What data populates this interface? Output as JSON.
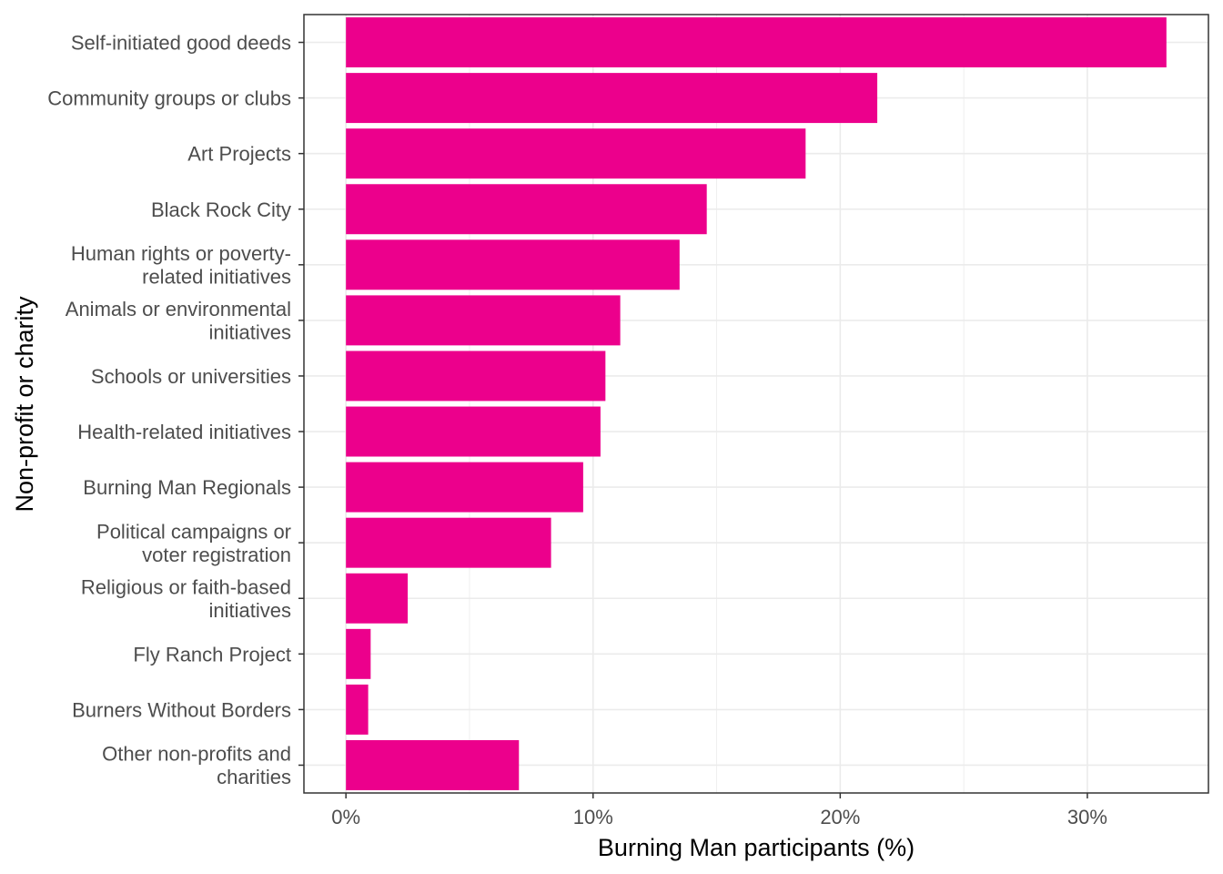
{
  "chart_data": {
    "type": "bar",
    "orientation": "horizontal",
    "title": "",
    "xlabel": "Burning Man participants (%)",
    "ylabel": "Non-profit or charity",
    "xlim": [
      -1.7,
      34.9
    ],
    "x_ticks": [
      0,
      10,
      20,
      30
    ],
    "x_tick_labels": [
      "0%",
      "10%",
      "20%",
      "30%"
    ],
    "grid": true,
    "legend": "none",
    "bar_color": "#EC008C",
    "categories": [
      [
        "Self-initiated good deeds"
      ],
      [
        "Community groups or clubs"
      ],
      [
        "Art Projects"
      ],
      [
        "Black Rock City"
      ],
      [
        "Human rights or poverty-",
        "related initiatives"
      ],
      [
        "Animals or environmental",
        "initiatives"
      ],
      [
        "Schools or universities"
      ],
      [
        "Health-related initiatives"
      ],
      [
        "Burning Man Regionals"
      ],
      [
        "Political campaigns or",
        "voter registration"
      ],
      [
        "Religious or faith-based",
        "initiatives"
      ],
      [
        "Fly Ranch Project"
      ],
      [
        "Burners Without Borders"
      ],
      [
        "Other non-profits and",
        "charities"
      ]
    ],
    "values": [
      33.2,
      21.5,
      18.6,
      14.6,
      13.5,
      11.1,
      10.5,
      10.3,
      9.6,
      8.3,
      2.5,
      1.0,
      0.9,
      7.0
    ]
  }
}
